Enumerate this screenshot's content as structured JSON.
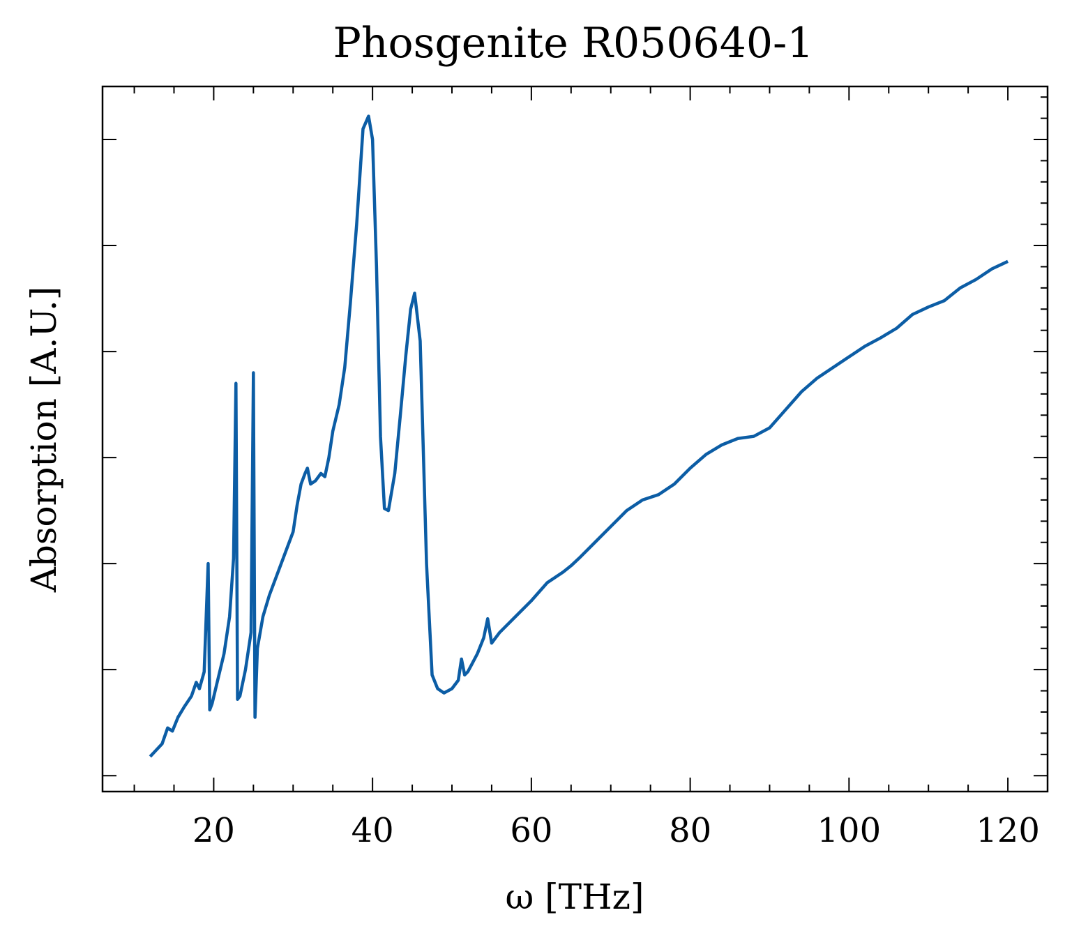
{
  "chart_data": {
    "type": "line",
    "title": "Phosgenite R050640-1",
    "xlabel": "ω [THz]",
    "ylabel": "Absorption [A.U.]",
    "xlim": [
      6,
      125
    ],
    "ylim": [
      -0.15,
      6.5
    ],
    "x_ticks": [
      20,
      40,
      60,
      80,
      100,
      120
    ],
    "x_tick_labels": [
      "20",
      "40",
      "60",
      "80",
      "100",
      "120"
    ],
    "y_ticks": [
      0,
      1,
      2,
      3,
      4,
      5,
      6
    ],
    "y_tick_labels_shown": false,
    "grid": false,
    "legend": "none",
    "line_color": "#0C5DA5",
    "series": [
      {
        "x": [
          12,
          12.5,
          13.5,
          14.2,
          14.8,
          15.5,
          16.3,
          17.2,
          17.8,
          18.2,
          18.8,
          19.3,
          19.5,
          19.8,
          20.5,
          21.3,
          22.0,
          22.5,
          22.8,
          23.0,
          23.3,
          24.0,
          24.7,
          25.0,
          25.2,
          25.5,
          26.2,
          27.0,
          28.0,
          29.0,
          30.0,
          30.5,
          31.0,
          31.5,
          31.8,
          32.2,
          32.8,
          33.5,
          34.0,
          34.5,
          35.0,
          35.8,
          36.5,
          37.2,
          38.0,
          38.8,
          39.5,
          40.0,
          40.5,
          41.0,
          41.5,
          42.0,
          42.8,
          43.5,
          44.2,
          44.8,
          45.3,
          46.0,
          46.8,
          47.5,
          48.2,
          49.0,
          50.0,
          50.8,
          51.2,
          51.6,
          52.0,
          52.5,
          53.2,
          54.0,
          54.5,
          55.0,
          56.0,
          58.0,
          60.0,
          62.0,
          64.0,
          65.0,
          66.0,
          68.0,
          70.0,
          72.0,
          74.0,
          76.0,
          78.0,
          80.0,
          82.0,
          84.0,
          86.0,
          88.0,
          90.0,
          92.0,
          94.0,
          96.0,
          98.0,
          100.0,
          102.0,
          104.0,
          106.0,
          108.0,
          110.0,
          112.0,
          114.0,
          116.0,
          118.0,
          120.0
        ],
        "y": [
          0.18,
          0.22,
          0.3,
          0.45,
          0.42,
          0.55,
          0.65,
          0.75,
          0.88,
          0.82,
          0.98,
          2.0,
          0.62,
          0.68,
          0.9,
          1.15,
          1.5,
          2.05,
          3.7,
          0.72,
          0.75,
          1.0,
          1.35,
          3.8,
          0.55,
          1.2,
          1.5,
          1.7,
          1.9,
          2.1,
          2.3,
          2.55,
          2.75,
          2.85,
          2.9,
          2.75,
          2.78,
          2.85,
          2.82,
          3.0,
          3.25,
          3.5,
          3.85,
          4.45,
          5.2,
          6.1,
          6.22,
          6.0,
          4.8,
          3.2,
          2.52,
          2.5,
          2.85,
          3.4,
          3.97,
          4.4,
          4.55,
          4.1,
          2.0,
          0.95,
          0.82,
          0.78,
          0.82,
          0.9,
          1.1,
          0.95,
          0.98,
          1.05,
          1.15,
          1.3,
          1.48,
          1.25,
          1.35,
          1.5,
          1.65,
          1.82,
          1.92,
          1.98,
          2.05,
          2.2,
          2.35,
          2.5,
          2.6,
          2.65,
          2.75,
          2.9,
          3.03,
          3.12,
          3.18,
          3.2,
          3.28,
          3.45,
          3.62,
          3.75,
          3.85,
          3.95,
          4.05,
          4.13,
          4.22,
          4.35,
          4.42,
          4.48,
          4.6,
          4.68,
          4.78,
          4.85
        ]
      }
    ]
  }
}
